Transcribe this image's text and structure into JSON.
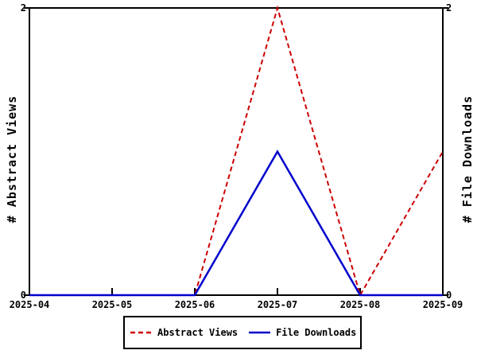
{
  "chart_data": {
    "type": "line",
    "categories": [
      "2025-04",
      "2025-05",
      "2025-06",
      "2025-07",
      "2025-08",
      "2025-09"
    ],
    "series": [
      {
        "name": "Abstract Views",
        "values": [
          0,
          0,
          0,
          2,
          0,
          1
        ],
        "color": "#cc0000",
        "style": "dashed"
      },
      {
        "name": "File Downloads",
        "values": [
          0,
          0,
          0,
          1,
          0,
          0
        ],
        "color": "#0000cc",
        "style": "solid"
      }
    ],
    "ylabel_left": "# Abstract Views",
    "ylabel_right": "# File Downloads",
    "ylim": [
      0,
      2
    ],
    "yticks": [
      0,
      2
    ],
    "xlabel": "",
    "title": "",
    "grid": false,
    "legend_position": "bottom",
    "axis_color": "#000000",
    "background_color": "#ffffff"
  }
}
